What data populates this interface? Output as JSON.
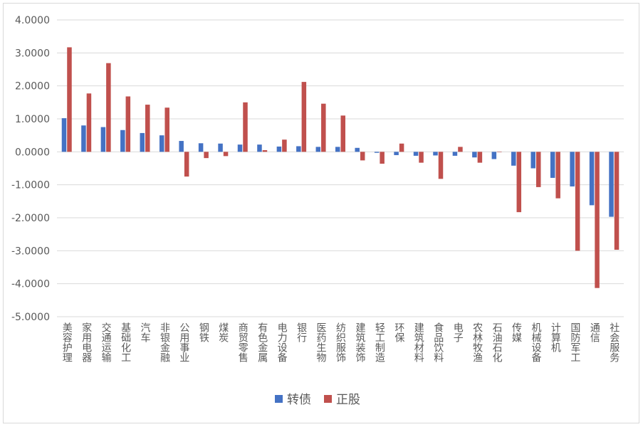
{
  "chart_data": {
    "type": "bar",
    "title": "",
    "xlabel": "",
    "ylabel": "",
    "ylim": [
      -5,
      4
    ],
    "yticks": [
      "4.0000",
      "3.0000",
      "2.0000",
      "1.0000",
      "0.0000",
      "-1.0000",
      "-2.0000",
      "-3.0000",
      "-4.0000",
      "-5.0000"
    ],
    "grid": true,
    "legend_position": "bottom",
    "categories": [
      "美容护理",
      "家用电器",
      "交通运输",
      "基础化工",
      "汽车",
      "非银金融",
      "公用事业",
      "钢铁",
      "煤炭",
      "商贸零售",
      "有色金属",
      "电力设备",
      "银行",
      "医药生物",
      "纺织服饰",
      "建筑装饰",
      "轻工制造",
      "环保",
      "建筑材料",
      "食品饮料",
      "电子",
      "农林牧渔",
      "石油石化",
      "传媒",
      "机械设备",
      "计算机",
      "国防军工",
      "通信",
      "社会服务"
    ],
    "series": [
      {
        "name": "转债",
        "color": "#4472C4",
        "values": [
          1.02,
          0.8,
          0.75,
          0.66,
          0.57,
          0.5,
          0.33,
          0.26,
          0.25,
          0.22,
          0.22,
          0.16,
          0.17,
          0.15,
          0.15,
          0.12,
          -0.03,
          -0.1,
          -0.12,
          -0.11,
          -0.12,
          -0.17,
          -0.22,
          -0.42,
          -0.5,
          -0.79,
          -1.05,
          -1.62,
          -1.97
        ]
      },
      {
        "name": "正股",
        "color": "#C0504D",
        "values": [
          3.17,
          1.77,
          2.69,
          1.68,
          1.43,
          1.34,
          -0.75,
          -0.19,
          -0.13,
          1.5,
          0.05,
          0.37,
          2.12,
          1.46,
          1.1,
          -0.26,
          -0.36,
          0.25,
          -0.33,
          -0.82,
          0.15,
          -0.33,
          0.0,
          -1.83,
          -1.07,
          -1.41,
          -3.0,
          -4.13,
          -2.97
        ]
      }
    ]
  }
}
